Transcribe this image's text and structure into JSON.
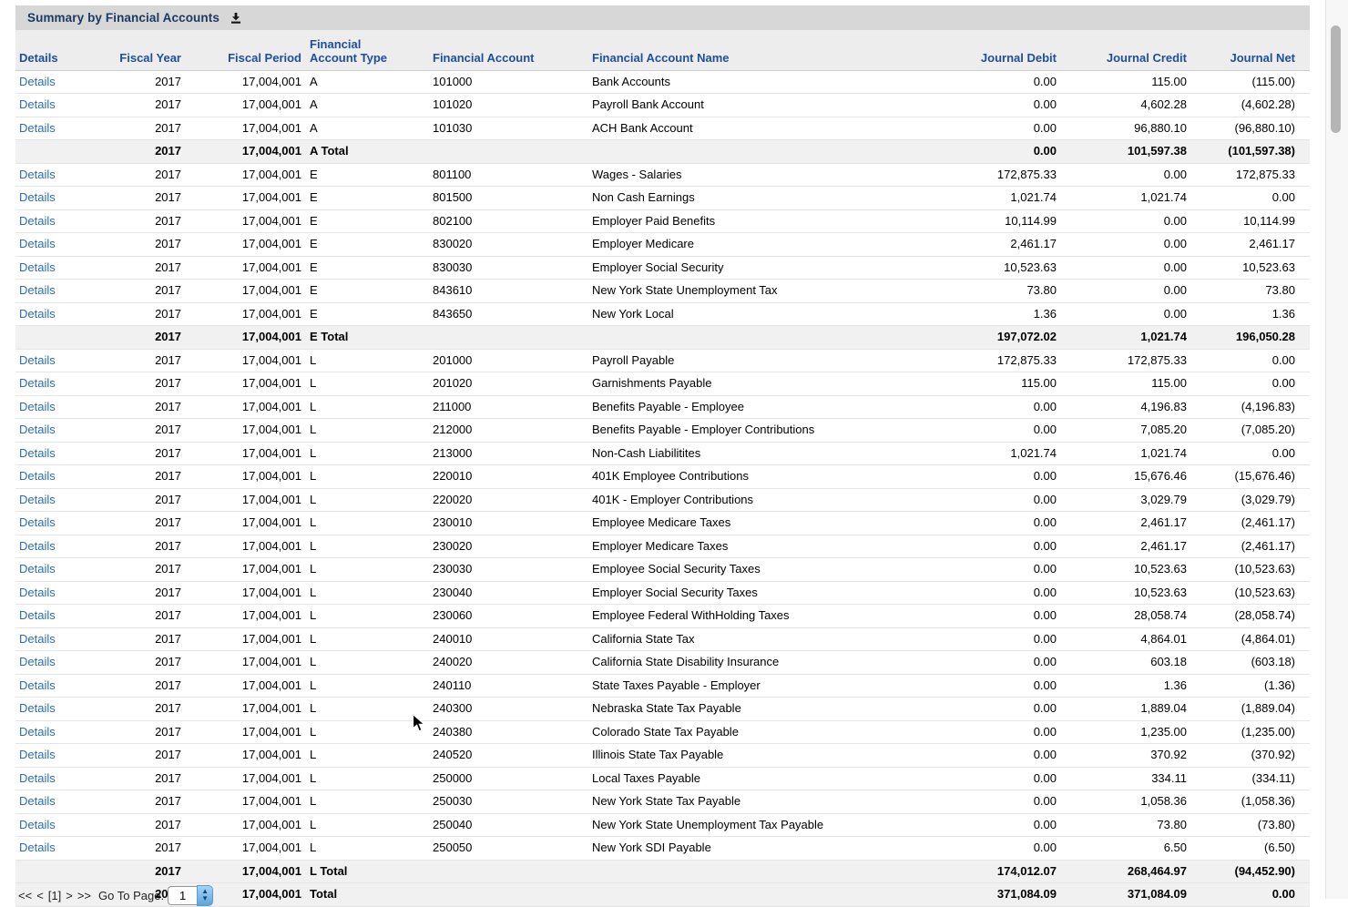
{
  "panel": {
    "title": "Summary by Financial Accounts"
  },
  "colors": {
    "titlebar_bg": "#d7d7d7",
    "title_text": "#1b3a64",
    "header_band_bg": "#ededed",
    "header_text": "#1d4f9e",
    "details_link": "#2a6db5",
    "total_row_bg": "#f1f1f1"
  },
  "table": {
    "columns": [
      {
        "key": "details",
        "label": "Details",
        "align": "al",
        "cls": "c1"
      },
      {
        "key": "fiscal_year",
        "label": "Fiscal Year",
        "align": "ar",
        "cls": "c2"
      },
      {
        "key": "fiscal_period",
        "label": "Fiscal Period",
        "align": "ar",
        "cls": "c3"
      },
      {
        "key": "account_type",
        "label": "Financial\nAccount Type",
        "align": "al",
        "cls": "c4"
      },
      {
        "key": "account",
        "label": "Financial Account",
        "align": "al",
        "cls": "c5"
      },
      {
        "key": "account_name",
        "label": "Financial Account Name",
        "align": "al",
        "cls": "c6"
      },
      {
        "key": "debit",
        "label": "Journal Debit",
        "align": "ar",
        "cls": "c7"
      },
      {
        "key": "credit",
        "label": "Journal Credit",
        "align": "ar",
        "cls": "c8"
      },
      {
        "key": "net",
        "label": "Journal Net",
        "align": "ar",
        "cls": "c9"
      }
    ],
    "rows": [
      {
        "details": "Details",
        "fiscal_year": "2017",
        "fiscal_period": "17,004,001",
        "account_type": "A",
        "account": "101000",
        "account_name": "Bank Accounts",
        "debit": "0.00",
        "credit": "115.00",
        "net": "(115.00)",
        "total": false
      },
      {
        "details": "Details",
        "fiscal_year": "2017",
        "fiscal_period": "17,004,001",
        "account_type": "A",
        "account": "101020",
        "account_name": "Payroll Bank Account",
        "debit": "0.00",
        "credit": "4,602.28",
        "net": "(4,602.28)",
        "total": false
      },
      {
        "details": "Details",
        "fiscal_year": "2017",
        "fiscal_period": "17,004,001",
        "account_type": "A",
        "account": "101030",
        "account_name": "ACH Bank Account",
        "debit": "0.00",
        "credit": "96,880.10",
        "net": "(96,880.10)",
        "total": false
      },
      {
        "details": "",
        "fiscal_year": "2017",
        "fiscal_period": "17,004,001",
        "account_type": "A Total",
        "account": "",
        "account_name": "",
        "debit": "0.00",
        "credit": "101,597.38",
        "net": "(101,597.38)",
        "total": true
      },
      {
        "details": "Details",
        "fiscal_year": "2017",
        "fiscal_period": "17,004,001",
        "account_type": "E",
        "account": "801100",
        "account_name": "Wages - Salaries",
        "debit": "172,875.33",
        "credit": "0.00",
        "net": "172,875.33",
        "total": false
      },
      {
        "details": "Details",
        "fiscal_year": "2017",
        "fiscal_period": "17,004,001",
        "account_type": "E",
        "account": "801500",
        "account_name": "Non Cash Earnings",
        "debit": "1,021.74",
        "credit": "1,021.74",
        "net": "0.00",
        "total": false
      },
      {
        "details": "Details",
        "fiscal_year": "2017",
        "fiscal_period": "17,004,001",
        "account_type": "E",
        "account": "802100",
        "account_name": "Employer Paid Benefits",
        "debit": "10,114.99",
        "credit": "0.00",
        "net": "10,114.99",
        "total": false
      },
      {
        "details": "Details",
        "fiscal_year": "2017",
        "fiscal_period": "17,004,001",
        "account_type": "E",
        "account": "830020",
        "account_name": "Employer Medicare",
        "debit": "2,461.17",
        "credit": "0.00",
        "net": "2,461.17",
        "total": false
      },
      {
        "details": "Details",
        "fiscal_year": "2017",
        "fiscal_period": "17,004,001",
        "account_type": "E",
        "account": "830030",
        "account_name": "Employer Social Security",
        "debit": "10,523.63",
        "credit": "0.00",
        "net": "10,523.63",
        "total": false
      },
      {
        "details": "Details",
        "fiscal_year": "2017",
        "fiscal_period": "17,004,001",
        "account_type": "E",
        "account": "843610",
        "account_name": "New York State Unemployment Tax",
        "debit": "73.80",
        "credit": "0.00",
        "net": "73.80",
        "total": false
      },
      {
        "details": "Details",
        "fiscal_year": "2017",
        "fiscal_period": "17,004,001",
        "account_type": "E",
        "account": "843650",
        "account_name": "New York Local",
        "debit": "1.36",
        "credit": "0.00",
        "net": "1.36",
        "total": false
      },
      {
        "details": "",
        "fiscal_year": "2017",
        "fiscal_period": "17,004,001",
        "account_type": "E Total",
        "account": "",
        "account_name": "",
        "debit": "197,072.02",
        "credit": "1,021.74",
        "net": "196,050.28",
        "total": true
      },
      {
        "details": "Details",
        "fiscal_year": "2017",
        "fiscal_period": "17,004,001",
        "account_type": "L",
        "account": "201000",
        "account_name": "Payroll Payable",
        "debit": "172,875.33",
        "credit": "172,875.33",
        "net": "0.00",
        "total": false
      },
      {
        "details": "Details",
        "fiscal_year": "2017",
        "fiscal_period": "17,004,001",
        "account_type": "L",
        "account": "201020",
        "account_name": "Garnishments Payable",
        "debit": "115.00",
        "credit": "115.00",
        "net": "0.00",
        "total": false
      },
      {
        "details": "Details",
        "fiscal_year": "2017",
        "fiscal_period": "17,004,001",
        "account_type": "L",
        "account": "211000",
        "account_name": "Benefits Payable - Employee",
        "debit": "0.00",
        "credit": "4,196.83",
        "net": "(4,196.83)",
        "total": false
      },
      {
        "details": "Details",
        "fiscal_year": "2017",
        "fiscal_period": "17,004,001",
        "account_type": "L",
        "account": "212000",
        "account_name": "Benefits Payable - Employer Contributions",
        "debit": "0.00",
        "credit": "7,085.20",
        "net": "(7,085.20)",
        "total": false
      },
      {
        "details": "Details",
        "fiscal_year": "2017",
        "fiscal_period": "17,004,001",
        "account_type": "L",
        "account": "213000",
        "account_name": "Non-Cash Liabilitites",
        "debit": "1,021.74",
        "credit": "1,021.74",
        "net": "0.00",
        "total": false
      },
      {
        "details": "Details",
        "fiscal_year": "2017",
        "fiscal_period": "17,004,001",
        "account_type": "L",
        "account": "220010",
        "account_name": "401K Employee Contributions",
        "debit": "0.00",
        "credit": "15,676.46",
        "net": "(15,676.46)",
        "total": false
      },
      {
        "details": "Details",
        "fiscal_year": "2017",
        "fiscal_period": "17,004,001",
        "account_type": "L",
        "account": "220020",
        "account_name": "401K - Employer Contributions",
        "debit": "0.00",
        "credit": "3,029.79",
        "net": "(3,029.79)",
        "total": false
      },
      {
        "details": "Details",
        "fiscal_year": "2017",
        "fiscal_period": "17,004,001",
        "account_type": "L",
        "account": "230010",
        "account_name": "Employee Medicare Taxes",
        "debit": "0.00",
        "credit": "2,461.17",
        "net": "(2,461.17)",
        "total": false
      },
      {
        "details": "Details",
        "fiscal_year": "2017",
        "fiscal_period": "17,004,001",
        "account_type": "L",
        "account": "230020",
        "account_name": "Employer Medicare Taxes",
        "debit": "0.00",
        "credit": "2,461.17",
        "net": "(2,461.17)",
        "total": false
      },
      {
        "details": "Details",
        "fiscal_year": "2017",
        "fiscal_period": "17,004,001",
        "account_type": "L",
        "account": "230030",
        "account_name": "Employee Social Security Taxes",
        "debit": "0.00",
        "credit": "10,523.63",
        "net": "(10,523.63)",
        "total": false
      },
      {
        "details": "Details",
        "fiscal_year": "2017",
        "fiscal_period": "17,004,001",
        "account_type": "L",
        "account": "230040",
        "account_name": "Employer Social Security Taxes",
        "debit": "0.00",
        "credit": "10,523.63",
        "net": "(10,523.63)",
        "total": false
      },
      {
        "details": "Details",
        "fiscal_year": "2017",
        "fiscal_period": "17,004,001",
        "account_type": "L",
        "account": "230060",
        "account_name": "Employee Federal WithHolding Taxes",
        "debit": "0.00",
        "credit": "28,058.74",
        "net": "(28,058.74)",
        "total": false
      },
      {
        "details": "Details",
        "fiscal_year": "2017",
        "fiscal_period": "17,004,001",
        "account_type": "L",
        "account": "240010",
        "account_name": "California State Tax",
        "debit": "0.00",
        "credit": "4,864.01",
        "net": "(4,864.01)",
        "total": false
      },
      {
        "details": "Details",
        "fiscal_year": "2017",
        "fiscal_period": "17,004,001",
        "account_type": "L",
        "account": "240020",
        "account_name": "California State Disability Insurance",
        "debit": "0.00",
        "credit": "603.18",
        "net": "(603.18)",
        "total": false
      },
      {
        "details": "Details",
        "fiscal_year": "2017",
        "fiscal_period": "17,004,001",
        "account_type": "L",
        "account": "240110",
        "account_name": "State Taxes Payable - Employer",
        "debit": "0.00",
        "credit": "1.36",
        "net": "(1.36)",
        "total": false
      },
      {
        "details": "Details",
        "fiscal_year": "2017",
        "fiscal_period": "17,004,001",
        "account_type": "L",
        "account": "240300",
        "account_name": "Nebraska State Tax Payable",
        "debit": "0.00",
        "credit": "1,889.04",
        "net": "(1,889.04)",
        "total": false
      },
      {
        "details": "Details",
        "fiscal_year": "2017",
        "fiscal_period": "17,004,001",
        "account_type": "L",
        "account": "240380",
        "account_name": "Colorado State Tax Payable",
        "debit": "0.00",
        "credit": "1,235.00",
        "net": "(1,235.00)",
        "total": false
      },
      {
        "details": "Details",
        "fiscal_year": "2017",
        "fiscal_period": "17,004,001",
        "account_type": "L",
        "account": "240520",
        "account_name": "Illinois State Tax Payable",
        "debit": "0.00",
        "credit": "370.92",
        "net": "(370.92)",
        "total": false
      },
      {
        "details": "Details",
        "fiscal_year": "2017",
        "fiscal_period": "17,004,001",
        "account_type": "L",
        "account": "250000",
        "account_name": "Local Taxes Payable",
        "debit": "0.00",
        "credit": "334.11",
        "net": "(334.11)",
        "total": false
      },
      {
        "details": "Details",
        "fiscal_year": "2017",
        "fiscal_period": "17,004,001",
        "account_type": "L",
        "account": "250030",
        "account_name": "New York State Tax Payable",
        "debit": "0.00",
        "credit": "1,058.36",
        "net": "(1,058.36)",
        "total": false
      },
      {
        "details": "Details",
        "fiscal_year": "2017",
        "fiscal_period": "17,004,001",
        "account_type": "L",
        "account": "250040",
        "account_name": "New York State Unemployment Tax Payable",
        "debit": "0.00",
        "credit": "73.80",
        "net": "(73.80)",
        "total": false
      },
      {
        "details": "Details",
        "fiscal_year": "2017",
        "fiscal_period": "17,004,001",
        "account_type": "L",
        "account": "250050",
        "account_name": "New York SDI Payable",
        "debit": "0.00",
        "credit": "6.50",
        "net": "(6.50)",
        "total": false
      },
      {
        "details": "",
        "fiscal_year": "2017",
        "fiscal_period": "17,004,001",
        "account_type": "L Total",
        "account": "",
        "account_name": "",
        "debit": "174,012.07",
        "credit": "268,464.97",
        "net": "(94,452.90)",
        "total": true
      },
      {
        "details": "",
        "fiscal_year": "2017",
        "fiscal_period": "17,004,001",
        "account_type": "Total",
        "account": "",
        "account_name": "",
        "debit": "371,084.09",
        "credit": "371,084.09",
        "net": "0.00",
        "total": true
      }
    ]
  },
  "pagination": {
    "first_label": "<<",
    "prev_label": "<",
    "current_page_label": "[1]",
    "next_label": ">",
    "last_label": ">>",
    "go_to_page_label": "Go To Page:",
    "page_input_value": "1"
  }
}
